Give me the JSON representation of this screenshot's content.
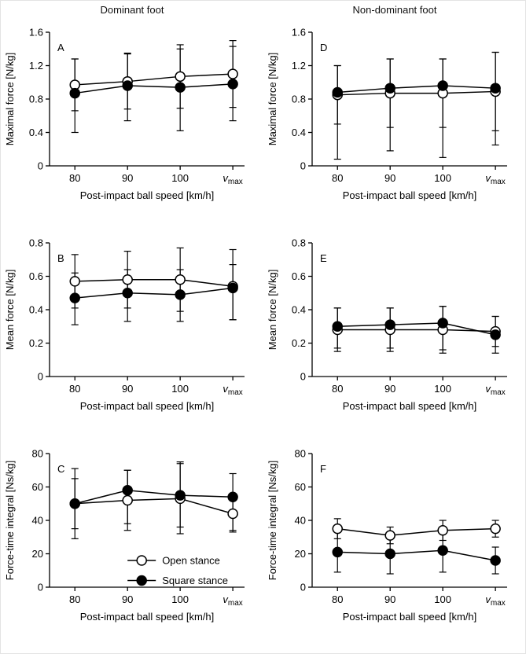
{
  "figure": {
    "column_titles": [
      "Dominant foot",
      "Non-dominant foot"
    ]
  },
  "chart_data": [
    {
      "panel_label": "A",
      "type": "line",
      "column": "Dominant foot",
      "ylabel": "Maximal force [N/kg]",
      "xlabel": "Post-impact ball speed [km/h]",
      "categories": [
        "80",
        "90",
        "100",
        "v_max"
      ],
      "ylim": [
        0,
        1.6
      ],
      "yticks": [
        0,
        0.4,
        0.8,
        1.2,
        1.6
      ],
      "ytick_labels": [
        "0",
        "0.4",
        "0.8",
        "1.2",
        "1.6"
      ],
      "grid": false,
      "series": [
        {
          "name": "Open stance",
          "marker": "open",
          "values": [
            0.97,
            1.01,
            1.07,
            1.1
          ],
          "err_up": [
            0.31,
            0.33,
            0.38,
            0.4
          ],
          "err_down": [
            0.31,
            0.33,
            0.38,
            0.4
          ]
        },
        {
          "name": "Square stance",
          "marker": "filled",
          "values": [
            0.87,
            0.96,
            0.94,
            0.98
          ],
          "err_up": [
            0.41,
            0.39,
            0.46,
            0.45
          ],
          "err_down": [
            0.47,
            0.42,
            0.52,
            0.44
          ]
        }
      ]
    },
    {
      "panel_label": "D",
      "type": "line",
      "column": "Non-dominant foot",
      "ylabel": "Maximal force [N/kg]",
      "xlabel": "Post-impact ball speed [km/h]",
      "categories": [
        "80",
        "90",
        "100",
        "v_max"
      ],
      "ylim": [
        0,
        1.6
      ],
      "yticks": [
        0,
        0.4,
        0.8,
        1.2,
        1.6
      ],
      "ytick_labels": [
        "0",
        "0.4",
        "0.8",
        "1.2",
        "1.6"
      ],
      "grid": false,
      "series": [
        {
          "name": "Open stance",
          "marker": "open",
          "values": [
            0.85,
            0.87,
            0.87,
            0.89
          ],
          "err_up": [
            0.35,
            0.41,
            0.41,
            0.47
          ],
          "err_down": [
            0.35,
            0.41,
            0.41,
            0.47
          ]
        },
        {
          "name": "Square stance",
          "marker": "filled",
          "values": [
            0.88,
            0.93,
            0.96,
            0.93
          ],
          "err_up": [
            0.32,
            0.35,
            0.32,
            0.43
          ],
          "err_down": [
            0.8,
            0.75,
            0.86,
            0.68
          ]
        }
      ]
    },
    {
      "panel_label": "B",
      "type": "line",
      "column": "Dominant foot",
      "ylabel": "Mean force [N/kg]",
      "xlabel": "Post-impact ball speed [km/h]",
      "categories": [
        "80",
        "90",
        "100",
        "v_max"
      ],
      "ylim": [
        0,
        0.8
      ],
      "yticks": [
        0,
        0.2,
        0.4,
        0.6,
        0.8
      ],
      "ytick_labels": [
        "0",
        "0.2",
        "0.4",
        "0.6",
        "0.8"
      ],
      "grid": false,
      "series": [
        {
          "name": "Open stance",
          "marker": "open",
          "values": [
            0.57,
            0.58,
            0.58,
            0.54
          ],
          "err_up": [
            0.16,
            0.17,
            0.19,
            0.22
          ],
          "err_down": [
            0.16,
            0.17,
            0.19,
            0.2
          ]
        },
        {
          "name": "Square stance",
          "marker": "filled",
          "values": [
            0.47,
            0.5,
            0.49,
            0.53
          ],
          "err_up": [
            0.15,
            0.14,
            0.15,
            0.14
          ],
          "err_down": [
            0.16,
            0.17,
            0.16,
            0.19
          ]
        }
      ]
    },
    {
      "panel_label": "E",
      "type": "line",
      "column": "Non-dominant foot",
      "ylabel": "Mean force [N/kg]",
      "xlabel": "Post-impact ball speed [km/h]",
      "categories": [
        "80",
        "90",
        "100",
        "v_max"
      ],
      "ylim": [
        0,
        0.8
      ],
      "yticks": [
        0,
        0.2,
        0.4,
        0.6,
        0.8
      ],
      "ytick_labels": [
        "0",
        "0.2",
        "0.4",
        "0.6",
        "0.8"
      ],
      "grid": false,
      "series": [
        {
          "name": "Open stance",
          "marker": "open",
          "values": [
            0.28,
            0.28,
            0.28,
            0.27
          ],
          "err_up": [
            0.13,
            0.13,
            0.14,
            0.09
          ],
          "err_down": [
            0.13,
            0.13,
            0.14,
            0.09
          ]
        },
        {
          "name": "Square stance",
          "marker": "filled",
          "values": [
            0.3,
            0.31,
            0.32,
            0.25
          ],
          "err_up": [
            0.11,
            0.1,
            0.1,
            0.11
          ],
          "err_down": [
            0.13,
            0.14,
            0.16,
            0.11
          ]
        }
      ]
    },
    {
      "panel_label": "C",
      "type": "line",
      "column": "Dominant foot",
      "ylabel": "Force-time integral [Ns/kg]",
      "xlabel": "Post-impact ball speed [km/h]",
      "categories": [
        "80",
        "90",
        "100",
        "v_max"
      ],
      "ylim": [
        0,
        80
      ],
      "yticks": [
        0,
        20,
        40,
        60,
        80
      ],
      "ytick_labels": [
        "0",
        "20",
        "40",
        "60",
        "80"
      ],
      "grid": false,
      "legend": {
        "x": 0.4,
        "y": 0.8,
        "row_gap": 0.15
      },
      "series": [
        {
          "name": "Open stance",
          "marker": "open",
          "values": [
            50,
            52,
            53,
            44
          ],
          "err_up": [
            21,
            18,
            21,
            11
          ],
          "err_down": [
            21,
            18,
            21,
            11
          ]
        },
        {
          "name": "Square stance",
          "marker": "filled",
          "values": [
            50,
            58,
            55,
            54
          ],
          "err_up": [
            15,
            12,
            20,
            14
          ],
          "err_down": [
            15,
            20,
            19,
            20
          ]
        }
      ]
    },
    {
      "panel_label": "F",
      "type": "line",
      "column": "Non-dominant foot",
      "ylabel": "Force-time integral [Ns/kg]",
      "xlabel": "Post-impact ball speed [km/h]",
      "categories": [
        "80",
        "90",
        "100",
        "v_max"
      ],
      "ylim": [
        0,
        80
      ],
      "yticks": [
        0,
        20,
        40,
        60,
        80
      ],
      "ytick_labels": [
        "0",
        "20",
        "40",
        "60",
        "80"
      ],
      "grid": false,
      "series": [
        {
          "name": "Open stance",
          "marker": "open",
          "values": [
            35,
            31,
            34,
            35
          ],
          "err_up": [
            6,
            5,
            6,
            5
          ],
          "err_down": [
            6,
            5,
            6,
            5
          ]
        },
        {
          "name": "Square stance",
          "marker": "filled",
          "values": [
            21,
            20,
            22,
            16
          ],
          "err_up": [
            12,
            12,
            13,
            8
          ],
          "err_down": [
            12,
            12,
            13,
            8
          ]
        }
      ]
    }
  ],
  "colors": {
    "axis": "#000000",
    "marker_open_fill": "#ffffff",
    "marker_filled_fill": "#000000",
    "background": "#ffffff"
  }
}
